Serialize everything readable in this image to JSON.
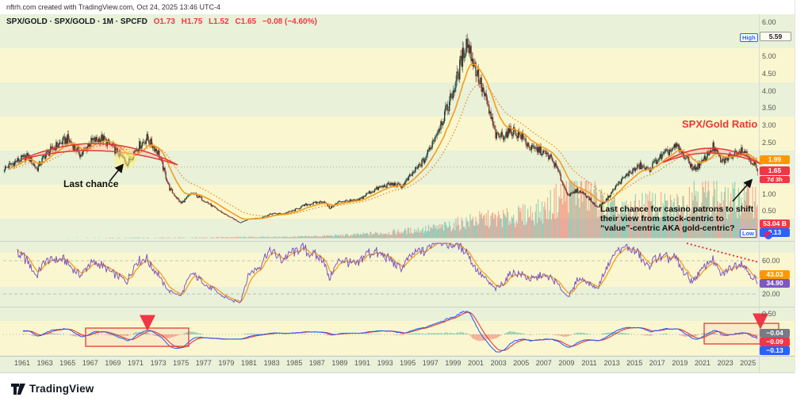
{
  "header": {
    "credit": "nftrh.com created with TradingView.com, Oct 24, 2025 13:46 UTC-4"
  },
  "legend": {
    "symbol": "SPX/GOLD · SPX/GOLD · 1M · SPCFD",
    "open": "O1.73",
    "high": "H1.75",
    "low": "L1.52",
    "close": "C1.65",
    "change": "−0.08 (−4.60%)"
  },
  "annotations": {
    "last_chance": "Last chance",
    "ratio_label": "SPX/Gold Ratio",
    "casino_line1": "Last chance for casino patrons to shift",
    "casino_line2": "their view from stock-centric to",
    "casino_line3": "“value”-centric AKA gold-centric?"
  },
  "price_axis": {
    "ticks": [
      "6.00",
      "5.00",
      "4.50",
      "4.00",
      "3.50",
      "3.00",
      "2.50",
      "1.00",
      "0.50"
    ],
    "tick_values": [
      6,
      5,
      4.5,
      4,
      3.5,
      3,
      2.5,
      1,
      0.5
    ],
    "high_tag": "High",
    "high_value": "5.59",
    "ma_badge": "1.99",
    "last_badge": "1.65",
    "countdown": "7d 3h",
    "volume_badge": "53.04 B",
    "low_tag": "Low",
    "low_value": "0.13"
  },
  "rsi_axis": {
    "ticks": [
      "60.00",
      "20.00"
    ],
    "tick_values": [
      60,
      20
    ],
    "ma_badge": "43.03",
    "value_badge": "34.90"
  },
  "macd_axis": {
    "ticks": [
      "0.50"
    ],
    "tick_values": [
      0.5
    ],
    "hist_badge": "−0.04",
    "signal_badge": "−0.09",
    "macd_badge": "−0.13"
  },
  "timeline": {
    "years": [
      "1961",
      "1963",
      "1965",
      "1967",
      "1969",
      "1971",
      "1973",
      "1975",
      "1977",
      "1979",
      "1981",
      "1983",
      "1985",
      "1987",
      "1989",
      "1991",
      "1993",
      "1995",
      "1997",
      "1999",
      "2001",
      "2003",
      "2005",
      "2007",
      "2009",
      "2011",
      "2013",
      "2015",
      "2017",
      "2019",
      "2021",
      "2023",
      "2025"
    ]
  },
  "footer": {
    "logo_text": "TradingView"
  },
  "colors": {
    "up": "#123d33",
    "down": "#7c352e",
    "ma_fast": "#f59d1b",
    "ma_slow": "#e8861a",
    "rsi": "#7e57c2",
    "rsi_ma": "#f59d1b",
    "macd": "#2962ff",
    "signal": "#e53935",
    "hist_up": "#26a69a",
    "hist_down": "#ef5350",
    "vol_up": "#26a69a",
    "vol_down": "#ef5350",
    "badge_orange": "#ff9800",
    "badge_red": "#f23645",
    "badge_blue": "#2962ff",
    "badge_purple": "#7e57c2",
    "badge_gray": "#787b86",
    "annotation_red": "#e53935"
  },
  "chart_data": [
    {
      "type": "candlestick",
      "title": "SPX/GOLD monthly ratio with EMA overlays and volume",
      "x_range": [
        1959.4,
        2025.9
      ],
      "ylim": [
        0,
        6
      ],
      "last_open": 1.73,
      "last_high": 1.75,
      "last_low": 1.52,
      "last_close": 1.65,
      "alltime_high": 5.59,
      "alltime_low": 0.13,
      "last_volume_B": 53.04,
      "overlays": [
        "EMA-20 solid orange",
        "EMA-45 dotted orange"
      ],
      "ratio_anchors": [
        [
          1959.5,
          1.75
        ],
        [
          1960.5,
          1.95
        ],
        [
          1961.5,
          2.1
        ],
        [
          1962.3,
          1.72
        ],
        [
          1963,
          2.12
        ],
        [
          1964,
          2.4
        ],
        [
          1965,
          2.6
        ],
        [
          1966.2,
          2.12
        ],
        [
          1967,
          2.5
        ],
        [
          1968,
          2.62
        ],
        [
          1969,
          2.35
        ],
        [
          1970.3,
          1.88
        ],
        [
          1971,
          2.3
        ],
        [
          1972,
          2.62
        ],
        [
          1973,
          2.2
        ],
        [
          1974,
          1.15
        ],
        [
          1975,
          0.72
        ],
        [
          1976,
          1.02
        ],
        [
          1977,
          0.82
        ],
        [
          1978,
          0.58
        ],
        [
          1979,
          0.38
        ],
        [
          1980.2,
          0.16
        ],
        [
          1981,
          0.27
        ],
        [
          1982,
          0.3
        ],
        [
          1983,
          0.42
        ],
        [
          1984,
          0.42
        ],
        [
          1985,
          0.52
        ],
        [
          1986,
          0.68
        ],
        [
          1987.6,
          0.78
        ],
        [
          1988.1,
          0.58
        ],
        [
          1989,
          0.78
        ],
        [
          1990.6,
          0.8
        ],
        [
          1991.5,
          1.02
        ],
        [
          1992.5,
          1.18
        ],
        [
          1993.5,
          1.28
        ],
        [
          1994.5,
          1.22
        ],
        [
          1995.5,
          1.62
        ],
        [
          1996.5,
          2.0
        ],
        [
          1997.5,
          2.75
        ],
        [
          1998.5,
          3.5
        ],
        [
          1999.3,
          4.3
        ],
        [
          1999.9,
          5.1
        ],
        [
          2000.2,
          5.45
        ],
        [
          2000.8,
          4.85
        ],
        [
          2001.5,
          4.1
        ],
        [
          2002,
          3.6
        ],
        [
          2002.8,
          2.65
        ],
        [
          2003.5,
          2.72
        ],
        [
          2004.2,
          2.85
        ],
        [
          2005,
          2.68
        ],
        [
          2005.9,
          2.3
        ],
        [
          2006.6,
          2.28
        ],
        [
          2007.6,
          2.05
        ],
        [
          2008.2,
          1.7
        ],
        [
          2008.9,
          1.1
        ],
        [
          2009.3,
          0.95
        ],
        [
          2009.9,
          1.1
        ],
        [
          2010.6,
          1.0
        ],
        [
          2011.7,
          0.6
        ],
        [
          2012.5,
          0.82
        ],
        [
          2013.5,
          1.28
        ],
        [
          2014.5,
          1.6
        ],
        [
          2015.5,
          1.82
        ],
        [
          2016.2,
          1.68
        ],
        [
          2017,
          2.0
        ],
        [
          2018.7,
          2.38
        ],
        [
          2019.6,
          2.02
        ],
        [
          2020.2,
          1.72
        ],
        [
          2020.9,
          1.88
        ],
        [
          2021.9,
          2.38
        ],
        [
          2022.7,
          1.92
        ],
        [
          2023.5,
          2.12
        ],
        [
          2024.5,
          2.32
        ],
        [
          2025.1,
          2.05
        ],
        [
          2025.6,
          1.85
        ],
        [
          2025.85,
          1.65
        ]
      ],
      "volume_anchors_B": [
        [
          1960,
          0.3
        ],
        [
          1975,
          0.7
        ],
        [
          1985,
          1.8
        ],
        [
          1990,
          4
        ],
        [
          1994,
          8
        ],
        [
          1998,
          14
        ],
        [
          2001,
          24
        ],
        [
          2004,
          27
        ],
        [
          2007,
          36
        ],
        [
          2008.8,
          58
        ],
        [
          2009.5,
          70
        ],
        [
          2010.5,
          62
        ],
        [
          2011.5,
          56
        ],
        [
          2012.5,
          40
        ],
        [
          2014,
          34
        ],
        [
          2016,
          44
        ],
        [
          2018,
          40
        ],
        [
          2019.2,
          44
        ],
        [
          2020.3,
          66
        ],
        [
          2021,
          56
        ],
        [
          2022,
          58
        ],
        [
          2023,
          46
        ],
        [
          2024,
          52
        ],
        [
          2025.8,
          53
        ]
      ]
    },
    {
      "type": "line",
      "title": "RSI(14) purple with orange signal MA",
      "ylim": [
        0,
        100
      ],
      "guide_levels": [
        60,
        20
      ],
      "last_rsi": 34.9,
      "last_rsi_ma": 43.03,
      "trendline": "red dotted declining line over 2019-2025"
    },
    {
      "type": "line",
      "title": "MACD(12,26,9) with histogram",
      "ylim": [
        -0.55,
        0.65
      ],
      "guide_levels": [
        0.5,
        0
      ],
      "last_macd": -0.13,
      "last_signal": -0.09,
      "last_histogram": -0.04
    }
  ]
}
